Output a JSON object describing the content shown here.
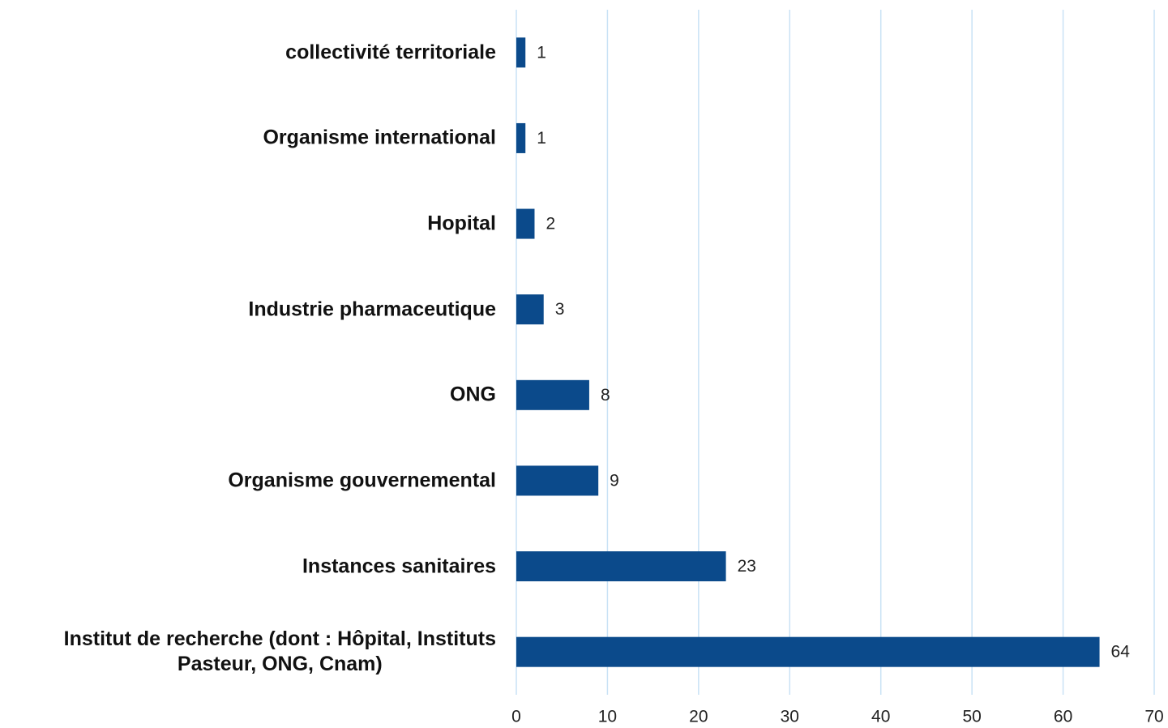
{
  "chart_data": {
    "type": "barh",
    "categories": [
      "collectivité territoriale",
      "Organisme international",
      "Hopital",
      "Industrie pharmaceutique",
      "ONG",
      "Organisme gouvernemental",
      "Instances sanitaires",
      "Institut de recherche (dont : Hôpital, Instituts\nPasteur, ONG, Cnam)"
    ],
    "values": [
      1,
      1,
      2,
      3,
      8,
      9,
      23,
      64
    ],
    "color": "#0b4a8b",
    "xlim": [
      0,
      70
    ],
    "xticks": [
      0,
      10,
      20,
      30,
      40,
      50,
      60,
      70
    ],
    "grid": true,
    "grid_color": "#c9e2f5"
  }
}
